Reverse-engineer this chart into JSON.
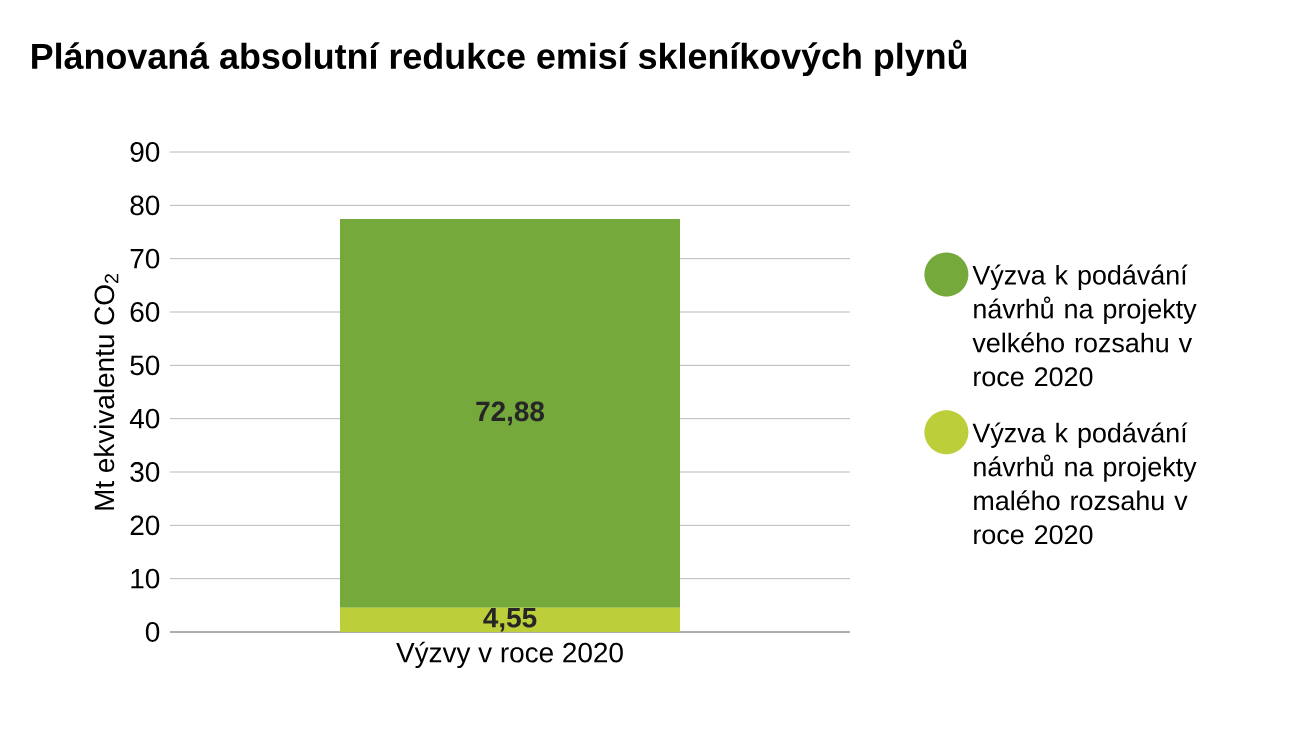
{
  "chart_data": {
    "type": "bar",
    "stacked": true,
    "title": "Plánovaná absolutní redukce emisí skleníkových plynů",
    "ylabel": "Mt ekvivalentu CO$_{2}$",
    "categories": [
      "Výzvy v roce 2020"
    ],
    "series": [
      {
        "name": "Výzva k podávání návrhů na projekty malého rozsahu v roce 2020",
        "color": "#bccf3a",
        "values": [
          4.55
        ],
        "value_labels": [
          "4,55"
        ]
      },
      {
        "name": "Výzva k podávání návrhů na projekty velkého rozsahu v roce 2020",
        "color": "#75a93c",
        "values": [
          72.88
        ],
        "value_labels": [
          "72,88"
        ]
      }
    ],
    "ylim": [
      0,
      90
    ],
    "yticks": [
      0,
      10,
      20,
      30,
      40,
      50,
      60,
      70,
      80,
      90
    ],
    "grid": "y",
    "legend": "right"
  }
}
